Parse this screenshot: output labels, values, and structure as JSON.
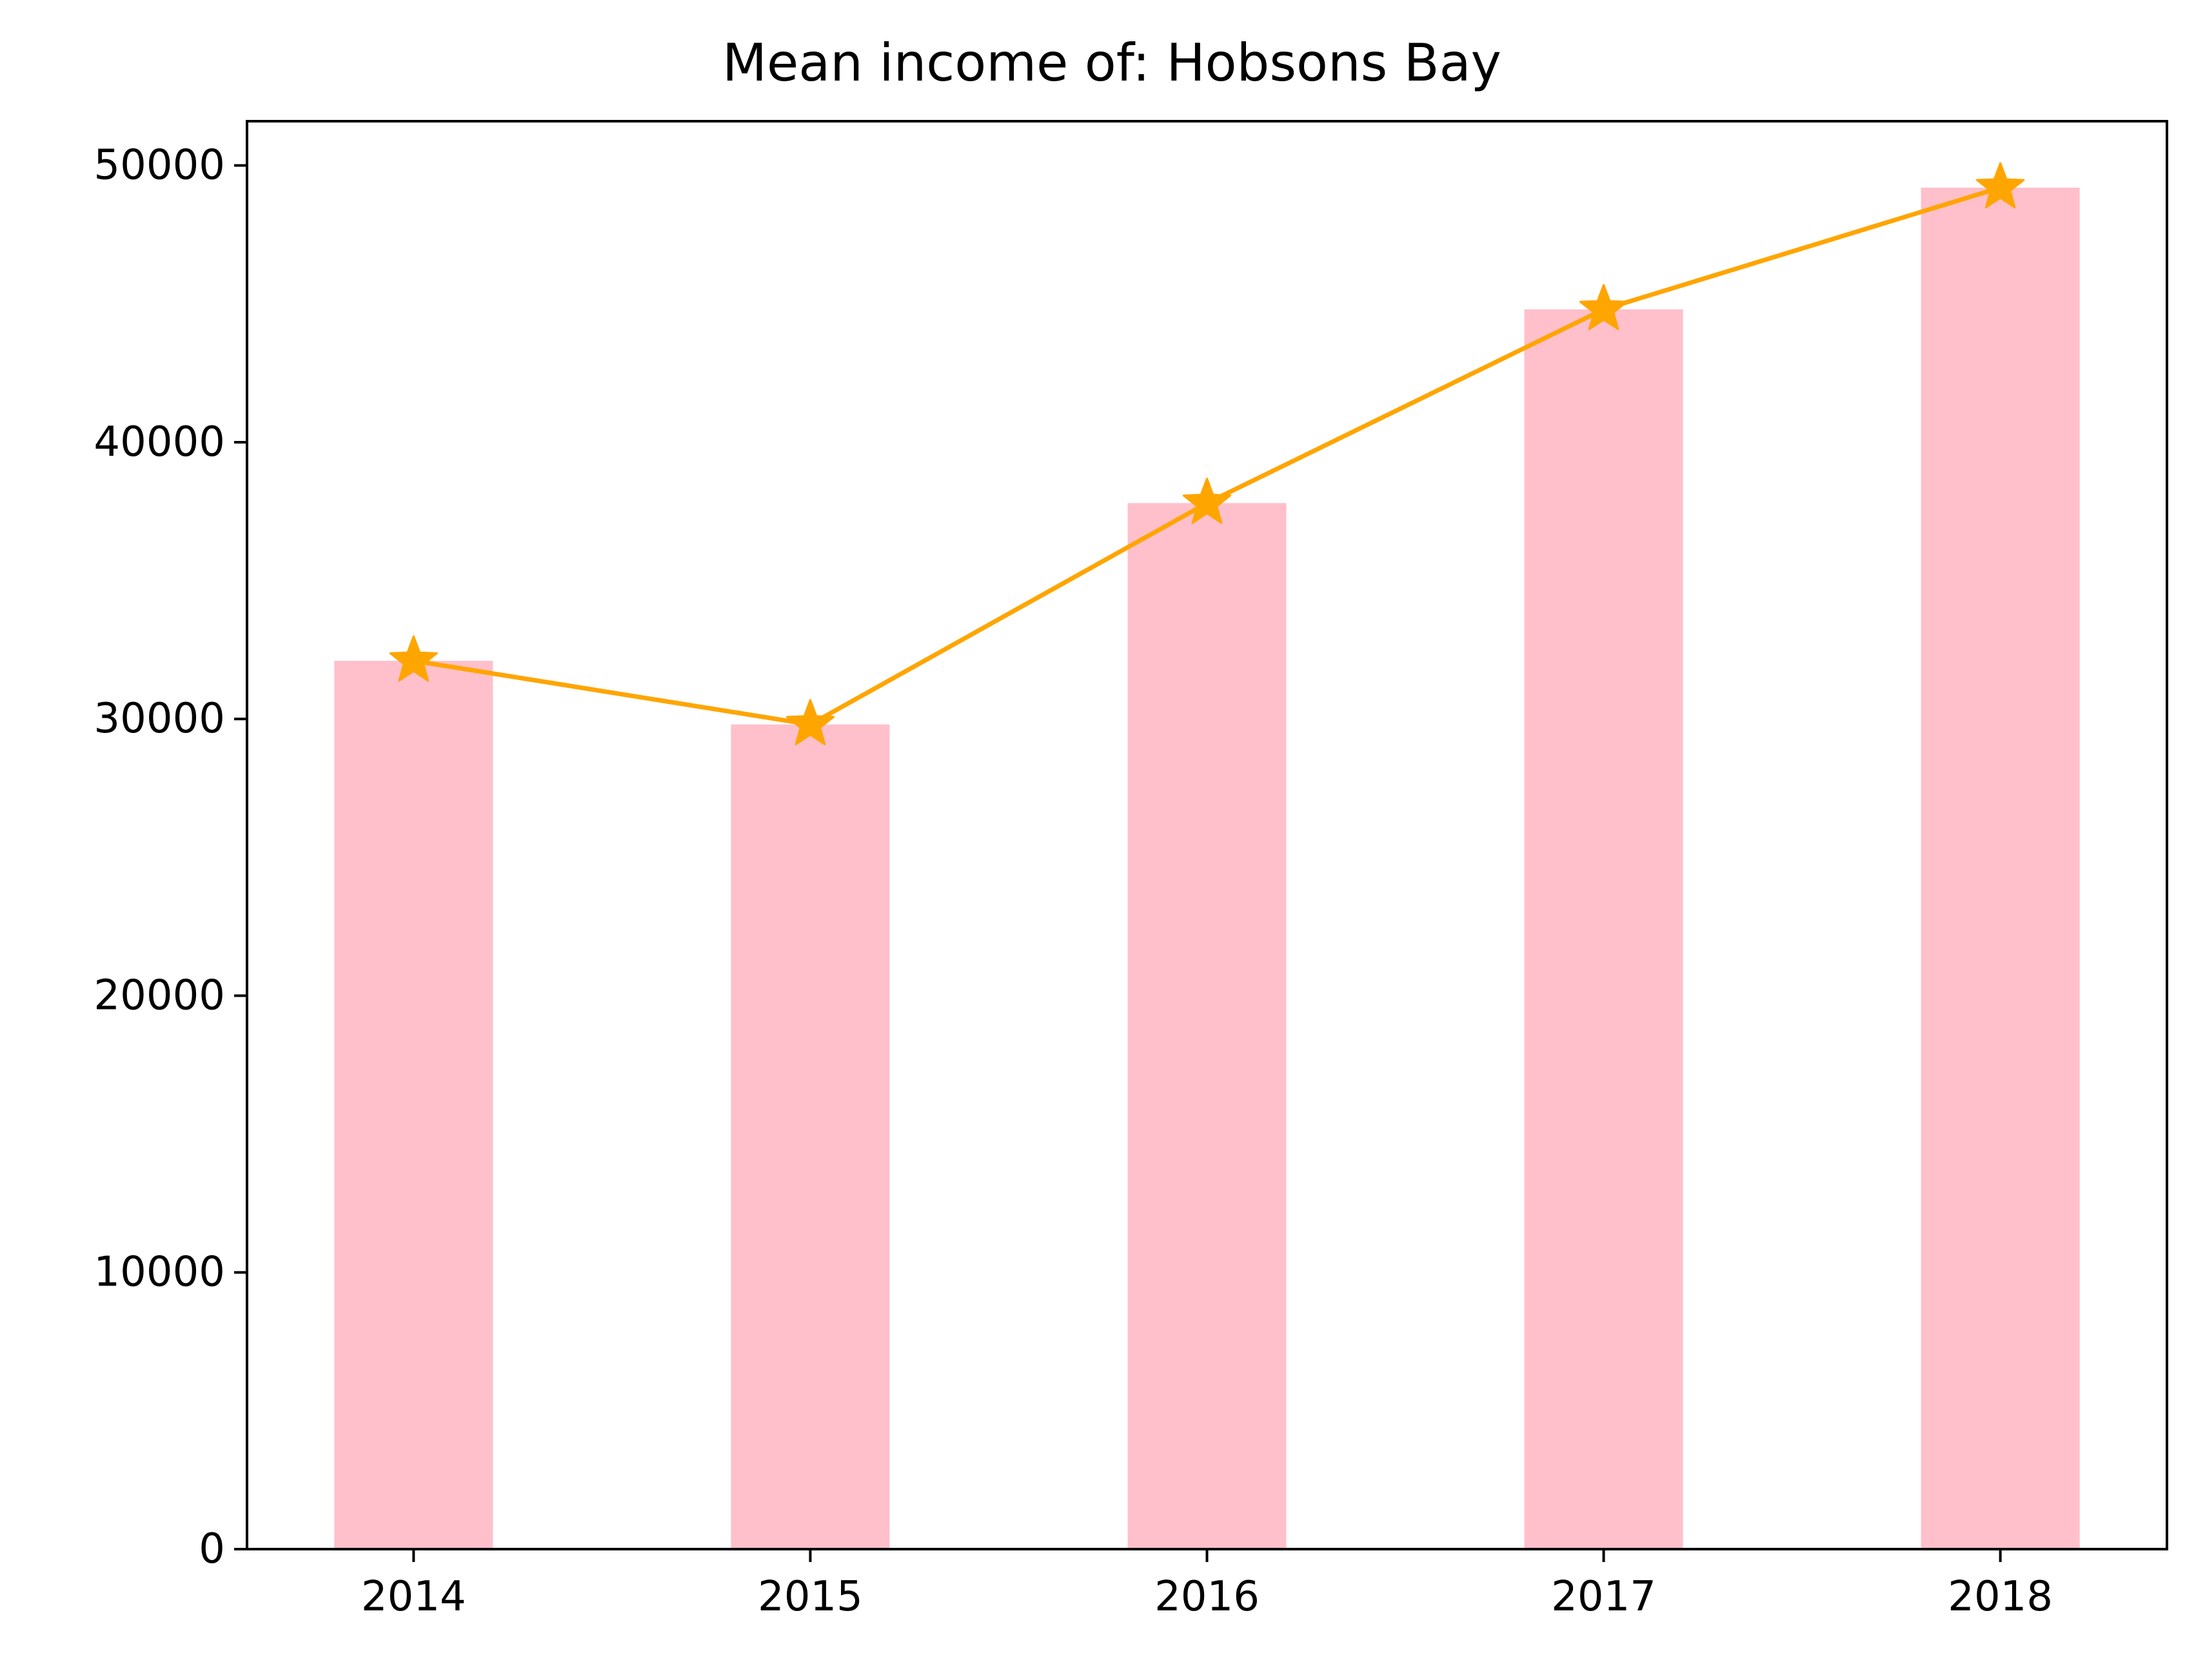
{
  "chart_data": {
    "type": "bar",
    "title": "Mean income of: Hobsons Bay",
    "xlabel": "",
    "ylabel": "",
    "categories": [
      "2014",
      "2015",
      "2016",
      "2017",
      "2018"
    ],
    "series": [
      {
        "type": "bar",
        "values": [
          32100,
          29800,
          37800,
          44800,
          49200
        ],
        "color": "#ffc0cb"
      },
      {
        "type": "line",
        "marker": "star",
        "values": [
          32100,
          29800,
          37800,
          44800,
          49200
        ],
        "color": "#ffa500"
      }
    ],
    "ylim": [
      0,
      51600
    ],
    "yticks": [
      0,
      10000,
      20000,
      30000,
      40000,
      50000
    ],
    "grid": false,
    "legend": "none"
  }
}
